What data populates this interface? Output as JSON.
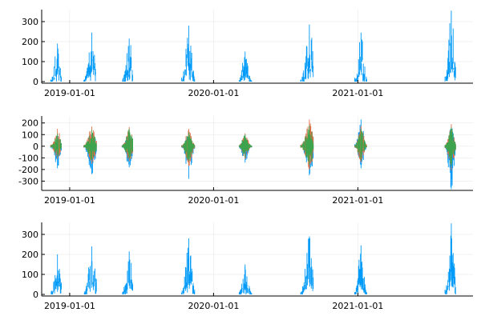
{
  "chart_data": [
    {
      "type": "line",
      "title": "",
      "xlabel": "",
      "ylabel": "",
      "xlim": [
        "2018-10-22",
        "2021-10-20"
      ],
      "ylim": [
        -8,
        360
      ],
      "x_ticks": [
        "2019-01-01",
        "2020-01-01",
        "2021-01-01"
      ],
      "y_ticks": [
        0,
        100,
        200,
        300
      ],
      "grid": true,
      "legend": "none",
      "series": [
        {
          "color": "#009af9",
          "bursts": [
            {
              "start": "2018-11-14",
              "end": "2018-12-12",
              "peak": "2018-12-01",
              "max": 190
            },
            {
              "start": "2019-02-06",
              "end": "2019-03-10",
              "peak": "2019-02-26",
              "max": 245
            },
            {
              "start": "2019-05-14",
              "end": "2019-06-10",
              "peak": "2019-06-01",
              "max": 215
            },
            {
              "start": "2019-10-12",
              "end": "2019-11-14",
              "peak": "2019-10-30",
              "max": 280
            },
            {
              "start": "2020-03-06",
              "end": "2020-04-07",
              "peak": "2020-03-21",
              "max": 150
            },
            {
              "start": "2020-08-09",
              "end": "2020-09-10",
              "peak": "2020-08-31",
              "max": 285
            },
            {
              "start": "2020-12-24",
              "end": "2021-01-24",
              "peak": "2021-01-09",
              "max": 245
            },
            {
              "start": "2021-08-10",
              "end": "2021-09-06",
              "peak": "2021-08-26",
              "max": 355
            }
          ]
        }
      ]
    },
    {
      "type": "line",
      "title": "",
      "xlabel": "",
      "ylabel": "",
      "xlim": [
        "2018-10-22",
        "2021-10-20"
      ],
      "ylim": [
        -380,
        260
      ],
      "x_ticks": [
        "2019-01-01",
        "2020-01-01",
        "2021-01-01"
      ],
      "y_ticks": [
        -300,
        -200,
        -100,
        0,
        100,
        200
      ],
      "grid": true,
      "legend": "none",
      "series": [
        {
          "color": "#009af9",
          "bursts": [
            {
              "start": "2018-11-14",
              "end": "2018-12-12",
              "peak": "2018-12-01",
              "max": 90,
              "min": -190
            },
            {
              "start": "2019-02-06",
              "end": "2019-03-10",
              "peak": "2019-02-26",
              "max": 130,
              "min": -240
            },
            {
              "start": "2019-05-14",
              "end": "2019-06-10",
              "peak": "2019-06-01",
              "max": 120,
              "min": -180
            },
            {
              "start": "2019-10-12",
              "end": "2019-11-14",
              "peak": "2019-10-30",
              "max": 110,
              "min": -280
            },
            {
              "start": "2020-03-06",
              "end": "2020-04-07",
              "peak": "2020-03-21",
              "max": 90,
              "min": -140
            },
            {
              "start": "2020-08-09",
              "end": "2020-09-10",
              "peak": "2020-08-31",
              "max": 170,
              "min": -250
            },
            {
              "start": "2020-12-24",
              "end": "2021-01-24",
              "peak": "2021-01-09",
              "max": 230,
              "min": -190
            },
            {
              "start": "2021-08-10",
              "end": "2021-09-06",
              "peak": "2021-08-26",
              "max": 170,
              "min": -370
            }
          ]
        },
        {
          "color": "#e26f46",
          "bursts": [
            {
              "start": "2018-11-14",
              "end": "2018-12-12",
              "peak": "2018-12-01",
              "max": 150,
              "min": -110
            },
            {
              "start": "2019-02-06",
              "end": "2019-03-10",
              "peak": "2019-02-26",
              "max": 170,
              "min": -150
            },
            {
              "start": "2019-05-14",
              "end": "2019-06-10",
              "peak": "2019-06-01",
              "max": 165,
              "min": -130
            },
            {
              "start": "2019-10-12",
              "end": "2019-11-14",
              "peak": "2019-10-30",
              "max": 150,
              "min": -170
            },
            {
              "start": "2020-03-06",
              "end": "2020-04-07",
              "peak": "2020-03-21",
              "max": 110,
              "min": -110
            },
            {
              "start": "2020-08-09",
              "end": "2020-09-10",
              "peak": "2020-08-31",
              "max": 230,
              "min": -200
            },
            {
              "start": "2020-12-24",
              "end": "2021-01-24",
              "peak": "2021-01-09",
              "max": 175,
              "min": -140
            },
            {
              "start": "2021-08-10",
              "end": "2021-09-06",
              "peak": "2021-08-26",
              "max": 190,
              "min": -210
            }
          ]
        },
        {
          "color": "#3da44d",
          "bursts": [
            {
              "start": "2018-11-14",
              "end": "2018-12-12",
              "peak": "2018-12-01",
              "max": 110,
              "min": -90
            },
            {
              "start": "2019-02-06",
              "end": "2019-03-10",
              "peak": "2019-02-26",
              "max": 140,
              "min": -120
            },
            {
              "start": "2019-05-14",
              "end": "2019-06-10",
              "peak": "2019-06-01",
              "max": 150,
              "min": -110
            },
            {
              "start": "2019-10-12",
              "end": "2019-11-14",
              "peak": "2019-10-30",
              "max": 120,
              "min": -130
            },
            {
              "start": "2020-03-06",
              "end": "2020-04-07",
              "peak": "2020-03-21",
              "max": 100,
              "min": -95
            },
            {
              "start": "2020-08-09",
              "end": "2020-09-10",
              "peak": "2020-08-31",
              "max": 180,
              "min": -160
            },
            {
              "start": "2020-12-24",
              "end": "2021-01-24",
              "peak": "2021-01-09",
              "max": 150,
              "min": -120
            },
            {
              "start": "2021-08-10",
              "end": "2021-09-06",
              "peak": "2021-08-26",
              "max": 160,
              "min": -170
            }
          ]
        }
      ]
    },
    {
      "type": "line",
      "title": "",
      "xlabel": "",
      "ylabel": "",
      "xlim": [
        "2018-10-22",
        "2021-10-20"
      ],
      "ylim": [
        -8,
        360
      ],
      "x_ticks": [
        "2019-01-01",
        "2020-01-01",
        "2021-01-01"
      ],
      "y_ticks": [
        0,
        100,
        200,
        300
      ],
      "grid": true,
      "legend": "none",
      "series": [
        {
          "color": "#009af9",
          "bursts": [
            {
              "start": "2018-11-14",
              "end": "2018-12-12",
              "peak": "2018-12-01",
              "max": 200
            },
            {
              "start": "2019-02-06",
              "end": "2019-03-10",
              "peak": "2019-02-26",
              "max": 240
            },
            {
              "start": "2019-05-14",
              "end": "2019-06-10",
              "peak": "2019-06-01",
              "max": 215
            },
            {
              "start": "2019-10-12",
              "end": "2019-11-14",
              "peak": "2019-10-30",
              "max": 280
            },
            {
              "start": "2020-03-06",
              "end": "2020-04-07",
              "peak": "2020-03-21",
              "max": 150
            },
            {
              "start": "2020-08-09",
              "end": "2020-09-10",
              "peak": "2020-08-31",
              "max": 290
            },
            {
              "start": "2020-12-24",
              "end": "2021-01-24",
              "peak": "2021-01-09",
              "max": 245
            },
            {
              "start": "2021-08-10",
              "end": "2021-09-06",
              "peak": "2021-08-26",
              "max": 355
            }
          ]
        }
      ]
    }
  ]
}
